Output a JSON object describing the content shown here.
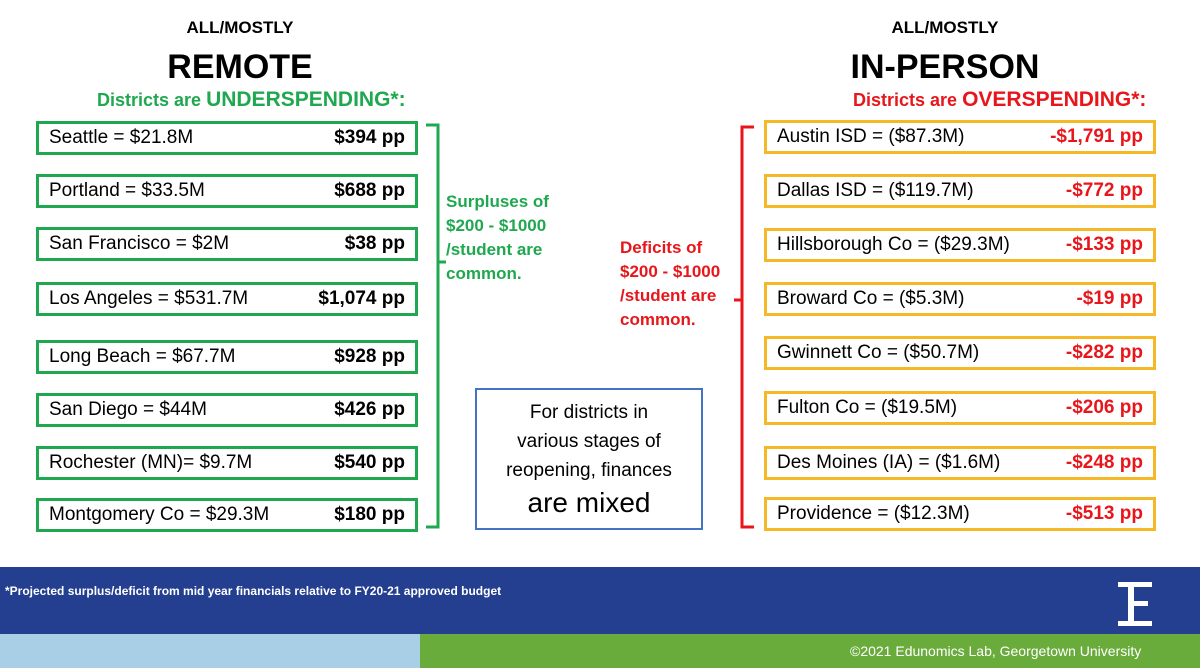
{
  "left": {
    "label": "ALL/MOSTLY",
    "heading": "REMOTE",
    "subtitle_prefix": "Districts are ",
    "subtitle_emphasis": "UNDERSPENDING*:",
    "rows": [
      {
        "district": "Seattle = $21.8M",
        "per_pupil": "$394 pp"
      },
      {
        "district": "Portland = $33.5M",
        "per_pupil": "$688 pp"
      },
      {
        "district": "San Francisco = $2M",
        "per_pupil": "$38 pp"
      },
      {
        "district": "Los Angeles = $531.7M",
        "per_pupil": "$1,074 pp"
      },
      {
        "district": "Long Beach = $67.7M",
        "per_pupil": "$928 pp"
      },
      {
        "district": "San Diego = $44M",
        "per_pupil": "$426 pp"
      },
      {
        "district": "Rochester (MN)= $9.7M",
        "per_pupil": "$540 pp"
      },
      {
        "district": "Montgomery Co = $29.3M",
        "per_pupil": "$180 pp"
      }
    ],
    "note": [
      "Surpluses of",
      "$200 - $1000",
      "/student are",
      "common."
    ]
  },
  "right": {
    "label": "ALL/MOSTLY",
    "heading": "IN-PERSON",
    "subtitle_prefix": "Districts are ",
    "subtitle_emphasis": "OVERSPENDING*:",
    "rows": [
      {
        "district": "Austin ISD = ($87.3M)",
        "per_pupil": "-$1,791 pp"
      },
      {
        "district": "Dallas ISD = ($119.7M)",
        "per_pupil": "-$772 pp"
      },
      {
        "district": "Hillsborough Co = ($29.3M)",
        "per_pupil": "-$133 pp"
      },
      {
        "district": "Broward Co = ($5.3M)",
        "per_pupil": "-$19 pp"
      },
      {
        "district": "Gwinnett Co = ($50.7M)",
        "per_pupil": "-$282 pp"
      },
      {
        "district": "Fulton Co = ($19.5M)",
        "per_pupil": "-$206 pp"
      },
      {
        "district": "Des Moines (IA) = ($1.6M)",
        "per_pupil": "-$248 pp"
      },
      {
        "district": "Providence = ($12.3M)",
        "per_pupil": "-$513 pp"
      }
    ],
    "note": [
      "Deficits of",
      "$200 - $1000",
      "/student are",
      "common."
    ]
  },
  "center_box": [
    "For districts in",
    "various stages of",
    "reopening, finances",
    "are mixed"
  ],
  "footer": {
    "note": "*Projected surplus/deficit from mid year financials relative to FY20-21 approved budget",
    "copyright": "©2021 Edunomics Lab, Georgetown University"
  }
}
